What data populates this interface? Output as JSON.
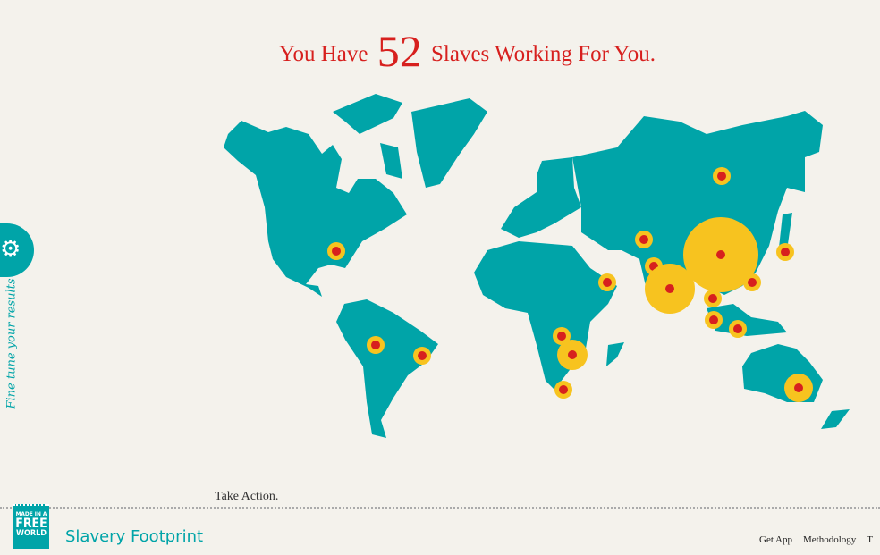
{
  "headline": {
    "prefix": "You Have",
    "count": "52",
    "suffix": "Slaves Working For You."
  },
  "sidebar": {
    "settings_icon": "gear-icon",
    "label": "Fine tune your results"
  },
  "take_action": "Take Action.",
  "footer": {
    "logo": {
      "line1": "MADE IN A",
      "line2": "FREE",
      "line3": "WORLD"
    },
    "brand": "Slavery Footprint",
    "links": [
      "Get App",
      "Methodology",
      "T"
    ]
  },
  "colors": {
    "land": "#00a4a8",
    "marker_ring": "#f7c31f",
    "marker_dot": "#d7201e",
    "accent": "#d7201e",
    "background": "#f4f2ec"
  }
}
